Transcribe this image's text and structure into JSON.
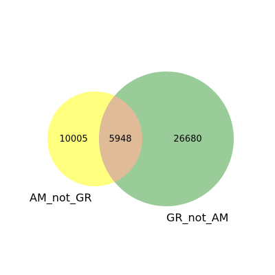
{
  "diagram": {
    "type": "venn2",
    "sets": [
      {
        "name": "AM_not_GR",
        "color": "#ffff7f"
      },
      {
        "name": "GR_not_AM",
        "color": "#99cc99"
      }
    ],
    "overlap_color": "#e0bb98",
    "regions": {
      "only_first": "10005",
      "intersection": "5948",
      "only_second": "26680"
    }
  }
}
